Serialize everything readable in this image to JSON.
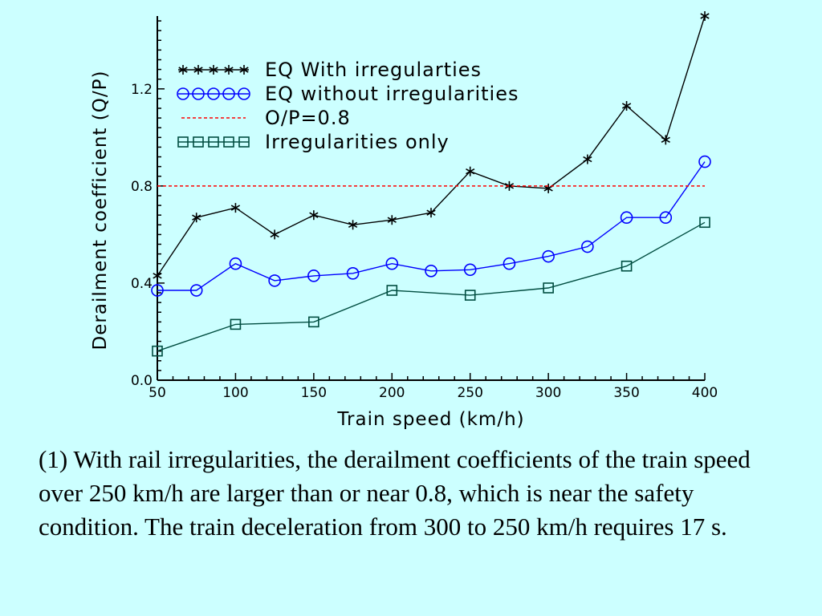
{
  "chart_data": {
    "type": "line",
    "title": "",
    "xlabel": "Train speed (km/h)",
    "ylabel": "Derailment coefficient (Q/P)",
    "xlim": [
      50,
      400
    ],
    "ylim": [
      0,
      1.5
    ],
    "x_ticks": [
      50,
      100,
      150,
      200,
      250,
      300,
      350,
      400
    ],
    "x_tick_labels": [
      "50",
      "100",
      "150",
      "200",
      "250",
      "300",
      "350",
      "400"
    ],
    "y_ticks": [
      0,
      0.4,
      0.8,
      1.2
    ],
    "y_tick_labels": [
      "0.0",
      "0.4",
      "0.8",
      "1.2"
    ],
    "grid": false,
    "legend_position": "top-left",
    "series": [
      {
        "name": "EQ With irregularties",
        "color": "#000000",
        "marker": "asterisk",
        "x": [
          50,
          75,
          100,
          125,
          150,
          175,
          200,
          225,
          250,
          275,
          300,
          325,
          350,
          375,
          400
        ],
        "values": [
          0.43,
          0.67,
          0.71,
          0.6,
          0.68,
          0.64,
          0.66,
          0.69,
          0.86,
          0.8,
          0.79,
          0.91,
          1.13,
          0.99,
          1.5
        ]
      },
      {
        "name": "EQ without irregularities",
        "color": "#0000ff",
        "marker": "circle",
        "x": [
          50,
          75,
          100,
          125,
          150,
          175,
          200,
          225,
          250,
          275,
          300,
          325,
          350,
          375,
          400
        ],
        "values": [
          0.37,
          0.37,
          0.48,
          0.41,
          0.43,
          0.44,
          0.48,
          0.45,
          0.455,
          0.48,
          0.51,
          0.55,
          0.67,
          0.67,
          0.9
        ]
      },
      {
        "name": "O/P=0.8",
        "color": "#ff0000",
        "marker": "none",
        "style": "dashed",
        "x": [
          50,
          400
        ],
        "values": [
          0.8,
          0.8
        ]
      },
      {
        "name": "Irregularities only",
        "color": "#004d40",
        "marker": "square",
        "x": [
          50,
          100,
          150,
          200,
          250,
          300,
          350,
          400
        ],
        "values": [
          0.12,
          0.23,
          0.24,
          0.37,
          0.35,
          0.38,
          0.47,
          0.65
        ]
      }
    ]
  },
  "caption": "(1) With rail irregularities, the derailment coefficients of the train speed over 250 km/h are larger than or near 0.8, which is near the safety condition. The train deceleration from 300 to 250 km/h requires 17 s."
}
